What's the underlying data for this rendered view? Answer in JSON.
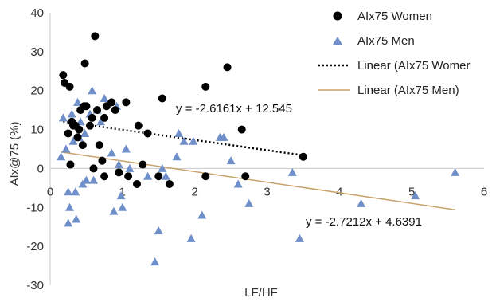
{
  "chart_data": {
    "type": "scatter",
    "title": "",
    "xlabel": "LF/HF",
    "ylabel": "AIx@75 (%)",
    "xlim": [
      0,
      6
    ],
    "ylim": [
      -30,
      40
    ],
    "xticks": [
      "0",
      "1",
      "2",
      "3",
      "4",
      "5",
      "6"
    ],
    "yticks": [
      "-30",
      "-20",
      "-10",
      "0",
      "10",
      "20",
      "30",
      "40"
    ],
    "grid": false,
    "legend_position": "top-right",
    "series": [
      {
        "name": "AIx75 Women",
        "marker": "circle",
        "color": "#000000",
        "points": [
          [
            0.18,
            24
          ],
          [
            0.2,
            22
          ],
          [
            0.27,
            21
          ],
          [
            0.25,
            9
          ],
          [
            0.28,
            1
          ],
          [
            0.3,
            12
          ],
          [
            0.32,
            11
          ],
          [
            0.35,
            11
          ],
          [
            0.38,
            8
          ],
          [
            0.4,
            10
          ],
          [
            0.42,
            15
          ],
          [
            0.45,
            6
          ],
          [
            0.47,
            16
          ],
          [
            0.48,
            27
          ],
          [
            0.5,
            16
          ],
          [
            0.55,
            11
          ],
          [
            0.58,
            13
          ],
          [
            0.6,
            0
          ],
          [
            0.62,
            34
          ],
          [
            0.65,
            15
          ],
          [
            0.68,
            6
          ],
          [
            0.72,
            2
          ],
          [
            0.75,
            -2
          ],
          [
            0.75,
            13
          ],
          [
            0.78,
            16
          ],
          [
            0.85,
            17
          ],
          [
            0.9,
            15
          ],
          [
            0.95,
            -1
          ],
          [
            1.05,
            17
          ],
          [
            1.08,
            -2
          ],
          [
            1.2,
            -4
          ],
          [
            1.22,
            11
          ],
          [
            1.28,
            1
          ],
          [
            1.35,
            9
          ],
          [
            1.5,
            -2
          ],
          [
            1.55,
            18
          ],
          [
            1.65,
            -4
          ],
          [
            2.15,
            21
          ],
          [
            2.15,
            -2
          ],
          [
            2.45,
            26
          ],
          [
            2.65,
            10
          ],
          [
            2.7,
            -2
          ],
          [
            3.5,
            3
          ]
        ]
      },
      {
        "name": "AIx75 Men",
        "marker": "triangle",
        "color": "#6e8fc9",
        "points": [
          [
            0.15,
            3
          ],
          [
            0.18,
            13
          ],
          [
            0.22,
            5
          ],
          [
            0.25,
            -14
          ],
          [
            0.25,
            -6
          ],
          [
            0.27,
            -10
          ],
          [
            0.3,
            14
          ],
          [
            0.32,
            7
          ],
          [
            0.35,
            -6
          ],
          [
            0.36,
            -13
          ],
          [
            0.38,
            17
          ],
          [
            0.4,
            8
          ],
          [
            0.42,
            12
          ],
          [
            0.45,
            -4
          ],
          [
            0.48,
            9
          ],
          [
            0.5,
            -3
          ],
          [
            0.55,
            14
          ],
          [
            0.58,
            20
          ],
          [
            0.6,
            -3
          ],
          [
            0.65,
            15
          ],
          [
            0.7,
            12
          ],
          [
            0.75,
            18
          ],
          [
            0.85,
            4
          ],
          [
            0.88,
            -11
          ],
          [
            0.92,
            16
          ],
          [
            0.95,
            1
          ],
          [
            0.98,
            -7
          ],
          [
            1.0,
            -10
          ],
          [
            1.05,
            5
          ],
          [
            1.1,
            0
          ],
          [
            1.35,
            -2
          ],
          [
            1.45,
            -24
          ],
          [
            1.5,
            -16
          ],
          [
            1.55,
            0
          ],
          [
            1.6,
            -2
          ],
          [
            1.75,
            3
          ],
          [
            1.78,
            9
          ],
          [
            1.85,
            7
          ],
          [
            1.95,
            -18
          ],
          [
            1.98,
            7
          ],
          [
            2.1,
            -12
          ],
          [
            2.35,
            8
          ],
          [
            2.4,
            8
          ],
          [
            2.5,
            2
          ],
          [
            2.6,
            -4
          ],
          [
            2.75,
            -9
          ],
          [
            3.35,
            -1
          ],
          [
            3.45,
            -18
          ],
          [
            4.3,
            -9
          ],
          [
            5.05,
            -7
          ],
          [
            5.6,
            -1
          ]
        ]
      }
    ],
    "trendlines": [
      {
        "name": "Linear (AIx75 Women)",
        "style": "dotted",
        "color": "#000000",
        "slope": -2.6161,
        "intercept": 12.545,
        "x_range": [
          0.18,
          3.5
        ],
        "equation_label": "y = -2.6161x + 12.545"
      },
      {
        "name": "Linear (AIx75 Men)",
        "style": "solid",
        "color": "#c8a26a",
        "slope": -2.7212,
        "intercept": 4.6391,
        "x_range": [
          0.15,
          5.6
        ],
        "equation_label": "y = -2.7212x + 4.6391"
      }
    ],
    "legend": [
      {
        "label": "AIx75 Women",
        "symbol": "circle"
      },
      {
        "label": "AIx75 Men",
        "symbol": "triangle"
      },
      {
        "label": "Linear (AIx75 Womer",
        "symbol": "dotted-line"
      },
      {
        "label": "Linear (AIx75 Men)",
        "symbol": "solid-line"
      }
    ]
  }
}
